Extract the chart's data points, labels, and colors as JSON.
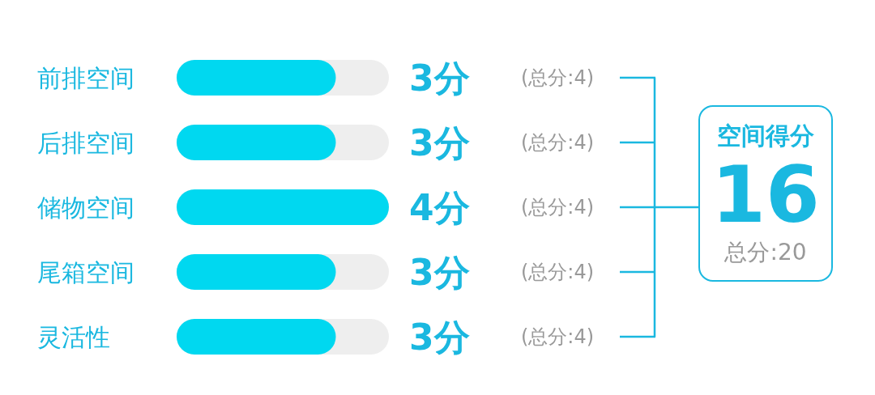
{
  "chart_data": {
    "type": "bar",
    "orientation": "horizontal",
    "categories": [
      "前排空间",
      "后排空间",
      "储物空间",
      "尾箱空间",
      "灵活性"
    ],
    "values": [
      3,
      3,
      4,
      3,
      3
    ],
    "color": "#00d8f0",
    "value_labels": [
      "3分",
      "3分",
      "4分",
      "3分",
      "3分"
    ],
    "xlim": [
      0,
      4
    ],
    "tick_labels": "y",
    "annotations": [
      "(总分:4)",
      "(总分:4)",
      "(总分:4)",
      "(总分:4)",
      "(总分:4)",
      "空间得分",
      "16",
      "总分:20"
    ]
  }
}
